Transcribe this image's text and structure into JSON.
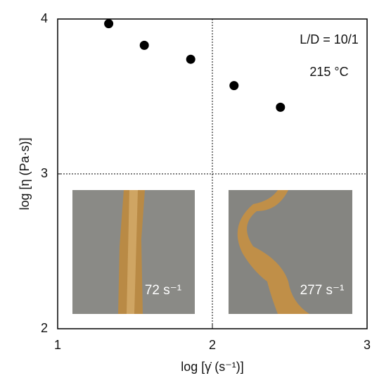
{
  "chart_data": {
    "type": "scatter",
    "x_label": "log [γ̇ (s⁻¹)]",
    "y_label": "log [η (Pa·s)]",
    "x": [
      1.33,
      1.56,
      1.86,
      2.14,
      2.44
    ],
    "values": [
      3.97,
      3.83,
      3.74,
      3.57,
      3.43
    ],
    "color": "#000000",
    "xlim": [
      1,
      3
    ],
    "xticks": [
      1,
      2,
      3
    ],
    "ylim": [
      2,
      4
    ],
    "yticks": [
      2,
      3,
      4
    ],
    "grid": true,
    "annotations": [
      "L/D = 10/1",
      "215 °C"
    ],
    "photo_labels": [
      "72 s⁻¹",
      "277 s⁻¹"
    ]
  }
}
